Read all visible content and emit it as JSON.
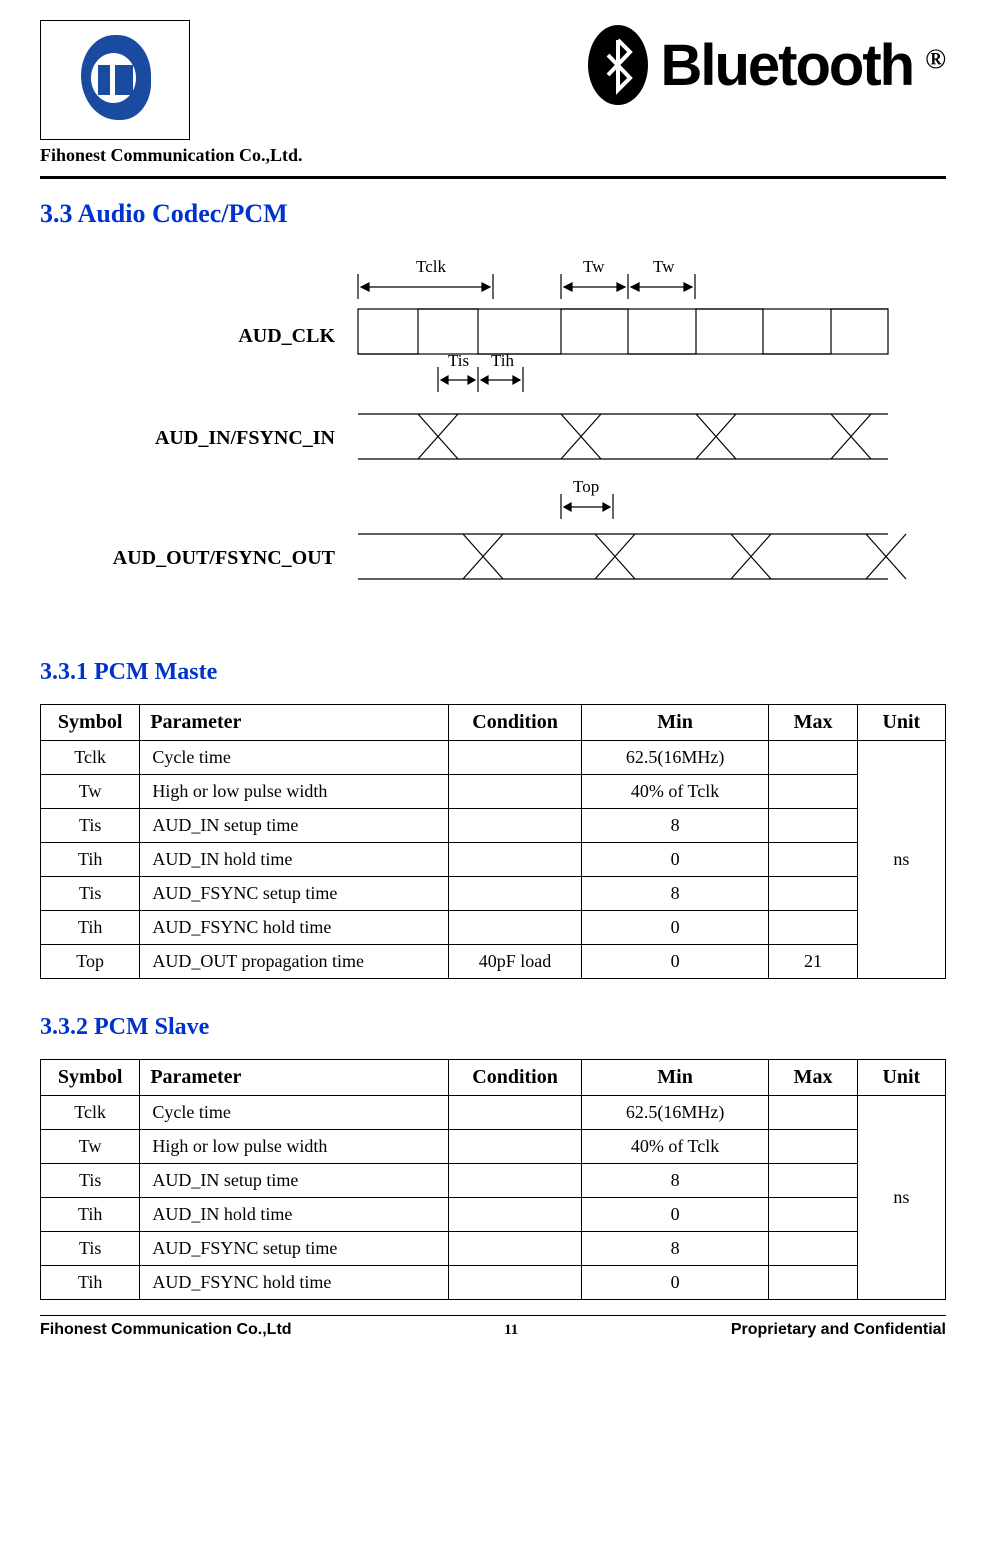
{
  "header": {
    "company": "Fihonest Communication Co.,Ltd.",
    "bt_text": "Bluetooth",
    "reg": "®"
  },
  "section": {
    "num_title": "3.3  Audio Codec/PCM",
    "sub1": "3.3.1 PCM Maste",
    "sub2": "3.3.2 PCM Slave"
  },
  "diagram": {
    "labels": {
      "tclk": "Tclk",
      "tw1": "Tw",
      "tw2": "Tw",
      "tis": "Tis",
      "tih": "Tih",
      "top": "Top",
      "aud_clk": "AUD_CLK",
      "aud_in": "AUD_IN/FSYNC_IN",
      "aud_out": "AUD_OUT/FSYNC_OUT"
    },
    "colors": {
      "stroke": "#000000",
      "line_width": 1.2
    }
  },
  "table1": {
    "headers": [
      "Symbol",
      "Parameter",
      "Condition",
      "Min",
      "Max",
      "Unit"
    ],
    "unit": "ns",
    "rows": [
      {
        "symbol": "Tclk",
        "param": "Cycle time",
        "cond": "",
        "min": "62.5(16MHz)",
        "max": ""
      },
      {
        "symbol": "Tw",
        "param": "High or low pulse width",
        "cond": "",
        "min": "40% of Tclk",
        "max": ""
      },
      {
        "symbol": "Tis",
        "param": "AUD_IN setup time",
        "cond": "",
        "min": "8",
        "max": ""
      },
      {
        "symbol": "Tih",
        "param": "AUD_IN hold time",
        "cond": "",
        "min": "0",
        "max": ""
      },
      {
        "symbol": "Tis",
        "param": "AUD_FSYNC setup time",
        "cond": "",
        "min": "8",
        "max": ""
      },
      {
        "symbol": "Tih",
        "param": "AUD_FSYNC hold time",
        "cond": "",
        "min": "0",
        "max": ""
      },
      {
        "symbol": "Top",
        "param": "AUD_OUT propagation time",
        "cond": "40pF load",
        "min": "0",
        "max": "21"
      }
    ]
  },
  "table2": {
    "headers": [
      "Symbol",
      "Parameter",
      "Condition",
      "Min",
      "Max",
      "Unit"
    ],
    "unit": "ns",
    "rows": [
      {
        "symbol": "Tclk",
        "param": "Cycle time",
        "cond": "",
        "min": "62.5(16MHz)",
        "max": ""
      },
      {
        "symbol": "Tw",
        "param": "High or low pulse width",
        "cond": "",
        "min": "40% of Tclk",
        "max": ""
      },
      {
        "symbol": "Tis",
        "param": "AUD_IN setup time",
        "cond": "",
        "min": "8",
        "max": ""
      },
      {
        "symbol": "Tih",
        "param": "AUD_IN hold time",
        "cond": "",
        "min": "0",
        "max": ""
      },
      {
        "symbol": "Tis",
        "param": "AUD_FSYNC setup time",
        "cond": "",
        "min": "8",
        "max": ""
      },
      {
        "symbol": "Tih",
        "param": "AUD_FSYNC hold time",
        "cond": "",
        "min": "0",
        "max": ""
      }
    ]
  },
  "footer": {
    "left": "Fihonest Communication Co.,Ltd",
    "page": "11",
    "right": "Proprietary and Confidential"
  }
}
